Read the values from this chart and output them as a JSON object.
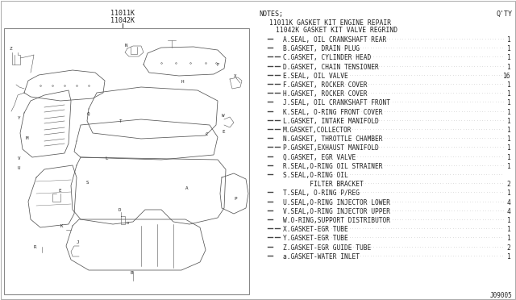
{
  "title_top": "11011K",
  "title_top2": "11042K",
  "notes_label": "NOTES;",
  "qty_label": "Q'TY",
  "kit1_label": "11011K GASKET KIT ENGINE REPAIR",
  "kit2_label": "11042K GASKET KIT VALVE REGRIND",
  "parts": [
    {
      "code": "A",
      "desc": "SEAL, OIL CRANKSHAFT REAR",
      "qty": "1",
      "k1": true,
      "k2": false
    },
    {
      "code": "B",
      "desc": "GASKET, DRAIN PLUG",
      "qty": "1",
      "k1": true,
      "k2": false
    },
    {
      "code": "C",
      "desc": "GASKET, CYLINDER HEAD",
      "qty": "1",
      "k1": true,
      "k2": true
    },
    {
      "code": "D",
      "desc": "GASKET, CHAIN TENSIONER",
      "qty": "1",
      "k1": true,
      "k2": true
    },
    {
      "code": "E",
      "desc": "SEAL, OIL VALVE",
      "qty": "16",
      "k1": true,
      "k2": true
    },
    {
      "code": "F",
      "desc": "GASKET, ROCKER COVER",
      "qty": "1",
      "k1": true,
      "k2": true
    },
    {
      "code": "H",
      "desc": "GASKET, ROCKER COVER",
      "qty": "1",
      "k1": true,
      "k2": true
    },
    {
      "code": "J",
      "desc": "SEAL, OIL CRANKSHAFT FRONT",
      "qty": "1",
      "k1": true,
      "k2": false
    },
    {
      "code": "K",
      "desc": "SEAL, O-RING FRONT COVER",
      "qty": "1",
      "k1": true,
      "k2": false
    },
    {
      "code": "L",
      "desc": "GASKET, INTAKE MANIFOLD",
      "qty": "1",
      "k1": true,
      "k2": true
    },
    {
      "code": "M",
      "desc": "GASKET,COLLECTOR",
      "qty": "1",
      "k1": true,
      "k2": true
    },
    {
      "code": "N",
      "desc": "GASKET, THROTTLE CHAMBER",
      "qty": "1",
      "k1": true,
      "k2": false
    },
    {
      "code": "P",
      "desc": "GASKET,EXHAUST MANIFOLD",
      "qty": "1",
      "k1": true,
      "k2": true
    },
    {
      "code": "Q",
      "desc": "GASKET, EGR VALVE",
      "qty": "1",
      "k1": true,
      "k2": false
    },
    {
      "code": "R",
      "desc": "SEAL,O-RING OIL STRAINER",
      "qty": "1",
      "k1": true,
      "k2": false
    },
    {
      "code": "S",
      "desc": "SEAL,O-RING OIL",
      "qty": "",
      "k1": true,
      "k2": false
    },
    {
      "code": "",
      "desc": "     FILTER BRACKET",
      "qty": "2",
      "k1": false,
      "k2": false
    },
    {
      "code": "T",
      "desc": "SEAL, O-RING P/REG",
      "qty": "1",
      "k1": true,
      "k2": false
    },
    {
      "code": "U",
      "desc": "SEAL,O-RING INJECTOR LOWER",
      "qty": "4",
      "k1": true,
      "k2": false
    },
    {
      "code": "V",
      "desc": "SEAL,O-RING INJECTOR UPPER",
      "qty": "4",
      "k1": true,
      "k2": false
    },
    {
      "code": "W",
      "desc": "O-RING,SUPPORT DISTRIBUTOR",
      "qty": "1",
      "k1": true,
      "k2": false
    },
    {
      "code": "X",
      "desc": "GASKET-EGR TUBE",
      "qty": "1",
      "k1": true,
      "k2": true
    },
    {
      "code": "Y",
      "desc": "GASKET-EGR TUBE",
      "qty": "1",
      "k1": true,
      "k2": true
    },
    {
      "code": "Z",
      "desc": "GASKET-EGR GUIDE TUBE",
      "qty": "2",
      "k1": true,
      "k2": false
    },
    {
      "code": "a",
      "desc": "GASKET-WATER INLET",
      "qty": "1",
      "k1": true,
      "k2": false
    }
  ],
  "diagram_ref": "J09005",
  "bg_color": "#ffffff",
  "text_color": "#222222",
  "line_color": "#444444",
  "diag_color": "#555555"
}
